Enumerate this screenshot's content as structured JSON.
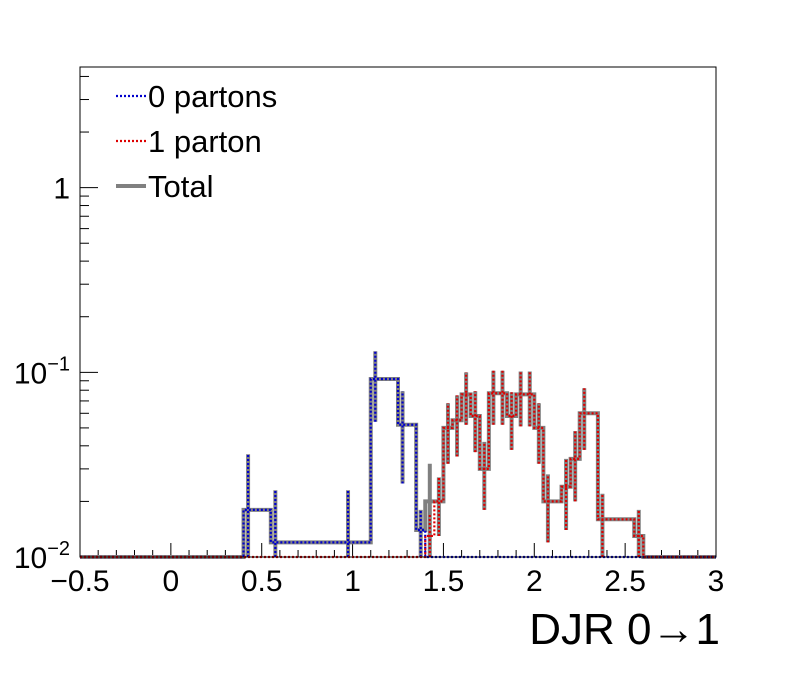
{
  "chart_data": {
    "type": "histogram",
    "title": "",
    "xlabel": "DJR 0→1",
    "ylabel": "",
    "log_y": true,
    "xlim": [
      -0.5,
      3.0
    ],
    "ylim": [
      0.01,
      4.5
    ],
    "x_ticks": [
      {
        "value": -0.5,
        "label": "−0.5"
      },
      {
        "value": 0,
        "label": "0"
      },
      {
        "value": 0.5,
        "label": "0.5"
      },
      {
        "value": 1,
        "label": "1"
      },
      {
        "value": 1.5,
        "label": "1.5"
      },
      {
        "value": 2,
        "label": "2"
      },
      {
        "value": 2.5,
        "label": "2.5"
      },
      {
        "value": 3,
        "label": "3"
      }
    ],
    "y_ticks": [
      {
        "value": 0.01,
        "base": "10",
        "exp": "−2"
      },
      {
        "value": 0.1,
        "base": "10",
        "exp": "−1"
      },
      {
        "value": 1,
        "base": "1",
        "exp": ""
      }
    ],
    "legend_position": "top-left",
    "series": [
      {
        "name": "0 partons",
        "color": "#0000cc",
        "style": "dotted",
        "bins": [
          {
            "lo": 0.4,
            "hi": 0.45,
            "y": 0.018,
            "err": 0.018
          },
          {
            "lo": 0.55,
            "hi": 0.6,
            "y": 0.012,
            "err": 0.011
          },
          {
            "lo": 0.95,
            "hi": 1.0,
            "y": 0.012,
            "err": 0.011
          },
          {
            "lo": 1.1,
            "hi": 1.15,
            "y": 0.092,
            "err": 0.038
          },
          {
            "lo": 1.25,
            "hi": 1.3,
            "y": 0.052,
            "err": 0.027
          },
          {
            "lo": 1.35,
            "hi": 1.4,
            "y": 0.014,
            "err": 0.004
          }
        ]
      },
      {
        "name": "1 parton",
        "color": "#dd0000",
        "style": "dotted",
        "bins": [
          {
            "lo": 1.4,
            "hi": 1.45,
            "y": 0.013,
            "err": 0.004
          },
          {
            "lo": 1.45,
            "hi": 1.5,
            "y": 0.02,
            "err": 0.007
          },
          {
            "lo": 1.5,
            "hi": 1.55,
            "y": 0.05,
            "err": 0.018
          },
          {
            "lo": 1.55,
            "hi": 1.6,
            "y": 0.055,
            "err": 0.02
          },
          {
            "lo": 1.6,
            "hi": 1.65,
            "y": 0.076,
            "err": 0.024
          },
          {
            "lo": 1.65,
            "hi": 1.7,
            "y": 0.058,
            "err": 0.021
          },
          {
            "lo": 1.7,
            "hi": 1.75,
            "y": 0.03,
            "err": 0.012
          },
          {
            "lo": 1.75,
            "hi": 1.8,
            "y": 0.077,
            "err": 0.025
          },
          {
            "lo": 1.8,
            "hi": 1.85,
            "y": 0.077,
            "err": 0.025
          },
          {
            "lo": 1.85,
            "hi": 1.9,
            "y": 0.058,
            "err": 0.02
          },
          {
            "lo": 1.9,
            "hi": 1.95,
            "y": 0.076,
            "err": 0.025
          },
          {
            "lo": 1.95,
            "hi": 2.0,
            "y": 0.076,
            "err": 0.025
          },
          {
            "lo": 2.0,
            "hi": 2.05,
            "y": 0.05,
            "err": 0.018
          },
          {
            "lo": 2.05,
            "hi": 2.1,
            "y": 0.02,
            "err": 0.008
          },
          {
            "lo": 2.15,
            "hi": 2.2,
            "y": 0.024,
            "err": 0.01
          },
          {
            "lo": 2.2,
            "hi": 2.25,
            "y": 0.034,
            "err": 0.014
          },
          {
            "lo": 2.25,
            "hi": 2.3,
            "y": 0.06,
            "err": 0.022
          },
          {
            "lo": 2.35,
            "hi": 2.4,
            "y": 0.016,
            "err": 0.006
          },
          {
            "lo": 2.55,
            "hi": 2.6,
            "y": 0.013,
            "err": 0.005
          }
        ]
      },
      {
        "name": "Total",
        "color": "#808080",
        "style": "solid",
        "bins": [
          {
            "lo": 0.4,
            "hi": 0.45,
            "y": 0.018,
            "err": 0.018
          },
          {
            "lo": 0.55,
            "hi": 0.6,
            "y": 0.012,
            "err": 0.011
          },
          {
            "lo": 0.95,
            "hi": 1.0,
            "y": 0.012,
            "err": 0.011
          },
          {
            "lo": 1.1,
            "hi": 1.15,
            "y": 0.092,
            "err": 0.038
          },
          {
            "lo": 1.25,
            "hi": 1.3,
            "y": 0.052,
            "err": 0.027
          },
          {
            "lo": 1.35,
            "hi": 1.4,
            "y": 0.014,
            "err": 0.004
          },
          {
            "lo": 1.4,
            "hi": 1.45,
            "y": 0.02,
            "err": 0.012
          },
          {
            "lo": 1.45,
            "hi": 1.5,
            "y": 0.02,
            "err": 0.007
          },
          {
            "lo": 1.5,
            "hi": 1.55,
            "y": 0.05,
            "err": 0.018
          },
          {
            "lo": 1.55,
            "hi": 1.6,
            "y": 0.055,
            "err": 0.02
          },
          {
            "lo": 1.6,
            "hi": 1.65,
            "y": 0.076,
            "err": 0.024
          },
          {
            "lo": 1.65,
            "hi": 1.7,
            "y": 0.058,
            "err": 0.021
          },
          {
            "lo": 1.7,
            "hi": 1.75,
            "y": 0.03,
            "err": 0.012
          },
          {
            "lo": 1.75,
            "hi": 1.8,
            "y": 0.077,
            "err": 0.025
          },
          {
            "lo": 1.8,
            "hi": 1.85,
            "y": 0.077,
            "err": 0.025
          },
          {
            "lo": 1.85,
            "hi": 1.9,
            "y": 0.058,
            "err": 0.02
          },
          {
            "lo": 1.9,
            "hi": 1.95,
            "y": 0.076,
            "err": 0.025
          },
          {
            "lo": 1.95,
            "hi": 2.0,
            "y": 0.076,
            "err": 0.025
          },
          {
            "lo": 2.0,
            "hi": 2.05,
            "y": 0.05,
            "err": 0.018
          },
          {
            "lo": 2.05,
            "hi": 2.1,
            "y": 0.02,
            "err": 0.008
          },
          {
            "lo": 2.15,
            "hi": 2.2,
            "y": 0.024,
            "err": 0.01
          },
          {
            "lo": 2.2,
            "hi": 2.25,
            "y": 0.034,
            "err": 0.014
          },
          {
            "lo": 2.25,
            "hi": 2.3,
            "y": 0.06,
            "err": 0.022
          },
          {
            "lo": 2.35,
            "hi": 2.4,
            "y": 0.016,
            "err": 0.006
          },
          {
            "lo": 2.55,
            "hi": 2.6,
            "y": 0.013,
            "err": 0.005
          }
        ]
      }
    ]
  }
}
